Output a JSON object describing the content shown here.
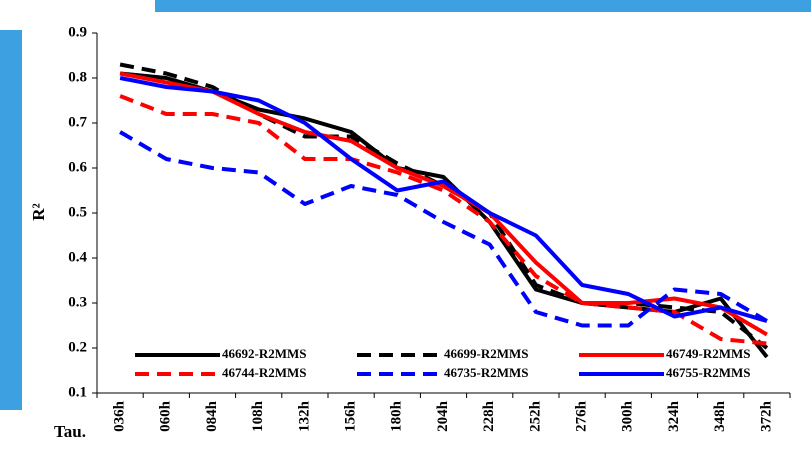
{
  "chart_data": {
    "type": "line",
    "y_label": "R²",
    "x_label": "Tau.",
    "categories": [
      "036h",
      "060h",
      "084h",
      "108h",
      "132h",
      "156h",
      "180h",
      "204h",
      "228h",
      "252h",
      "276h",
      "300h",
      "324h",
      "348h",
      "372h"
    ],
    "ylim": [
      0.1,
      0.9
    ],
    "yticks": [
      0.1,
      0.2,
      0.3,
      0.4,
      0.5,
      0.6,
      0.7,
      0.8,
      0.9
    ],
    "series": [
      {
        "name": "46692-R2MMS",
        "color": "#000000",
        "dashed": false,
        "values": [
          0.81,
          0.8,
          0.77,
          0.73,
          0.71,
          0.68,
          0.6,
          0.58,
          0.48,
          0.33,
          0.3,
          0.29,
          0.28,
          0.31,
          0.18
        ]
      },
      {
        "name": "46699-R2MMS",
        "color": "#000000",
        "dashed": true,
        "values": [
          0.83,
          0.81,
          0.78,
          0.72,
          0.67,
          0.67,
          0.61,
          0.56,
          0.5,
          0.34,
          0.3,
          0.3,
          0.29,
          0.28,
          0.2
        ]
      },
      {
        "name": "46749-R2MMS",
        "color": "#ff0000",
        "dashed": false,
        "values": [
          0.81,
          0.79,
          0.77,
          0.72,
          0.68,
          0.66,
          0.6,
          0.56,
          0.5,
          0.39,
          0.3,
          0.3,
          0.31,
          0.29,
          0.23
        ]
      },
      {
        "name": "46744-R2MMS",
        "color": "#ff0000",
        "dashed": true,
        "values": [
          0.76,
          0.72,
          0.72,
          0.7,
          0.62,
          0.62,
          0.59,
          0.55,
          0.48,
          0.36,
          0.3,
          0.29,
          0.28,
          0.22,
          0.21
        ]
      },
      {
        "name": "46735-R2MMS",
        "color": "#0000ff",
        "dashed": true,
        "values": [
          0.68,
          0.62,
          0.6,
          0.59,
          0.52,
          0.56,
          0.54,
          0.48,
          0.43,
          0.28,
          0.25,
          0.25,
          0.33,
          0.32,
          0.26
        ]
      },
      {
        "name": "46755-R2MMS",
        "color": "#0000ff",
        "dashed": false,
        "values": [
          0.8,
          0.78,
          0.77,
          0.75,
          0.7,
          0.62,
          0.55,
          0.57,
          0.5,
          0.45,
          0.34,
          0.32,
          0.27,
          0.29,
          0.26
        ]
      }
    ]
  }
}
